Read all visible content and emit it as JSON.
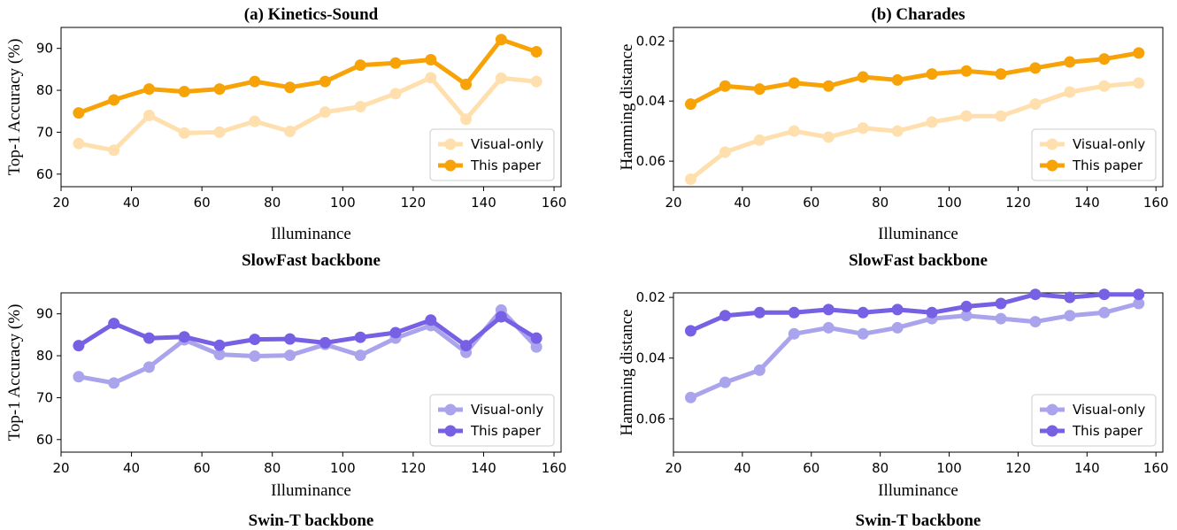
{
  "figure": {
    "colors": {
      "orange_light": "#FFDFAD",
      "orange_dark": "#F7A307",
      "purple_light": "#A9A4EC",
      "purple_dark": "#7760E4",
      "axis": "#000000"
    }
  },
  "chart_data": [
    {
      "id": "ks-slowfast",
      "type": "line",
      "title": "(a) Kinetics-Sound",
      "caption": "SlowFast backbone",
      "xlabel": "Illuminance",
      "ylabel": "Top-1 Accuracy (%)",
      "xlim": [
        20,
        162
      ],
      "ylim": [
        57,
        95
      ],
      "y_inverted": false,
      "xticks": [
        20,
        40,
        60,
        80,
        100,
        120,
        140,
        160
      ],
      "yticks": [
        60,
        70,
        80,
        90
      ],
      "ytick_labels": [
        "60",
        "70",
        "80",
        "90"
      ],
      "legend_position": "lower-right",
      "x": [
        25,
        35,
        45,
        55,
        65,
        75,
        85,
        95,
        105,
        115,
        125,
        135,
        145,
        155
      ],
      "series": [
        {
          "name": "Visual-only",
          "color": "#FFDFAD",
          "values": [
            67.3,
            65.7,
            74.0,
            69.8,
            70.0,
            72.6,
            70.2,
            74.8,
            76.1,
            79.2,
            83.0,
            73.1,
            82.9,
            82.1
          ]
        },
        {
          "name": "This paper",
          "color": "#F7A307",
          "values": [
            74.6,
            77.7,
            80.3,
            79.7,
            80.3,
            82.1,
            80.7,
            82.1,
            86.0,
            86.5,
            87.3,
            81.4,
            92.1,
            89.2
          ]
        }
      ]
    },
    {
      "id": "ch-slowfast",
      "type": "line",
      "title": "(b) Charades",
      "caption": "SlowFast backbone",
      "xlabel": "Illuminance",
      "ylabel": "Hamming distance",
      "xlim": [
        20,
        162
      ],
      "ylim": [
        0.0155,
        0.0685
      ],
      "y_inverted": true,
      "xticks": [
        20,
        40,
        60,
        80,
        100,
        120,
        140,
        160
      ],
      "yticks": [
        0.02,
        0.04,
        0.06
      ],
      "ytick_labels": [
        "0.02",
        "0.04",
        "0.06"
      ],
      "legend_position": "lower-right",
      "x": [
        25,
        35,
        45,
        55,
        65,
        75,
        85,
        95,
        105,
        115,
        125,
        135,
        145,
        155
      ],
      "series": [
        {
          "name": "Visual-only",
          "color": "#FFDFAD",
          "values": [
            0.066,
            0.057,
            0.053,
            0.05,
            0.052,
            0.049,
            0.05,
            0.047,
            0.045,
            0.045,
            0.041,
            0.037,
            0.035,
            0.034
          ]
        },
        {
          "name": "This paper",
          "color": "#F7A307",
          "values": [
            0.041,
            0.035,
            0.036,
            0.034,
            0.035,
            0.032,
            0.033,
            0.031,
            0.03,
            0.031,
            0.029,
            0.027,
            0.026,
            0.024
          ]
        }
      ]
    },
    {
      "id": "ks-swin",
      "type": "line",
      "title": "",
      "caption": "Swin-T backbone",
      "xlabel": "Illuminance",
      "ylabel": "Top-1 Accuracy (%)",
      "xlim": [
        20,
        162
      ],
      "ylim": [
        57,
        95
      ],
      "y_inverted": false,
      "xticks": [
        20,
        40,
        60,
        80,
        100,
        120,
        140,
        160
      ],
      "yticks": [
        60,
        70,
        80,
        90
      ],
      "ytick_labels": [
        "60",
        "70",
        "80",
        "90"
      ],
      "legend_position": "lower-right",
      "x": [
        25,
        35,
        45,
        55,
        65,
        75,
        85,
        95,
        105,
        115,
        125,
        135,
        145,
        155
      ],
      "series": [
        {
          "name": "Visual-only",
          "color": "#A9A4EC",
          "values": [
            75.0,
            73.5,
            77.3,
            83.8,
            80.3,
            79.9,
            80.1,
            82.7,
            80.1,
            84.2,
            87.2,
            80.8,
            90.9,
            82.1
          ]
        },
        {
          "name": "This paper",
          "color": "#7760E4",
          "values": [
            82.4,
            87.7,
            84.2,
            84.5,
            82.5,
            83.9,
            84.0,
            83.1,
            84.4,
            85.5,
            88.5,
            82.4,
            89.3,
            84.2
          ]
        }
      ]
    },
    {
      "id": "ch-swin",
      "type": "line",
      "title": "",
      "caption": "Swin-T backbone",
      "xlabel": "Illuminance",
      "ylabel": "Hamming distance",
      "xlim": [
        20,
        162
      ],
      "ylim": [
        0.0185,
        0.071
      ],
      "y_inverted": true,
      "xticks": [
        20,
        40,
        60,
        80,
        100,
        120,
        140,
        160
      ],
      "yticks": [
        0.02,
        0.04,
        0.06
      ],
      "ytick_labels": [
        "0.02",
        "0.04",
        "0.06"
      ],
      "legend_position": "lower-right",
      "x": [
        25,
        35,
        45,
        55,
        65,
        75,
        85,
        95,
        105,
        115,
        125,
        135,
        145,
        155
      ],
      "series": [
        {
          "name": "Visual-only",
          "color": "#A9A4EC",
          "values": [
            0.053,
            0.048,
            0.044,
            0.032,
            0.03,
            0.032,
            0.03,
            0.027,
            0.026,
            0.027,
            0.028,
            0.026,
            0.025,
            0.022
          ]
        },
        {
          "name": "This paper",
          "color": "#7760E4",
          "values": [
            0.031,
            0.026,
            0.025,
            0.025,
            0.024,
            0.025,
            0.024,
            0.025,
            0.023,
            0.022,
            0.019,
            0.02,
            0.019,
            0.019
          ]
        }
      ]
    }
  ]
}
